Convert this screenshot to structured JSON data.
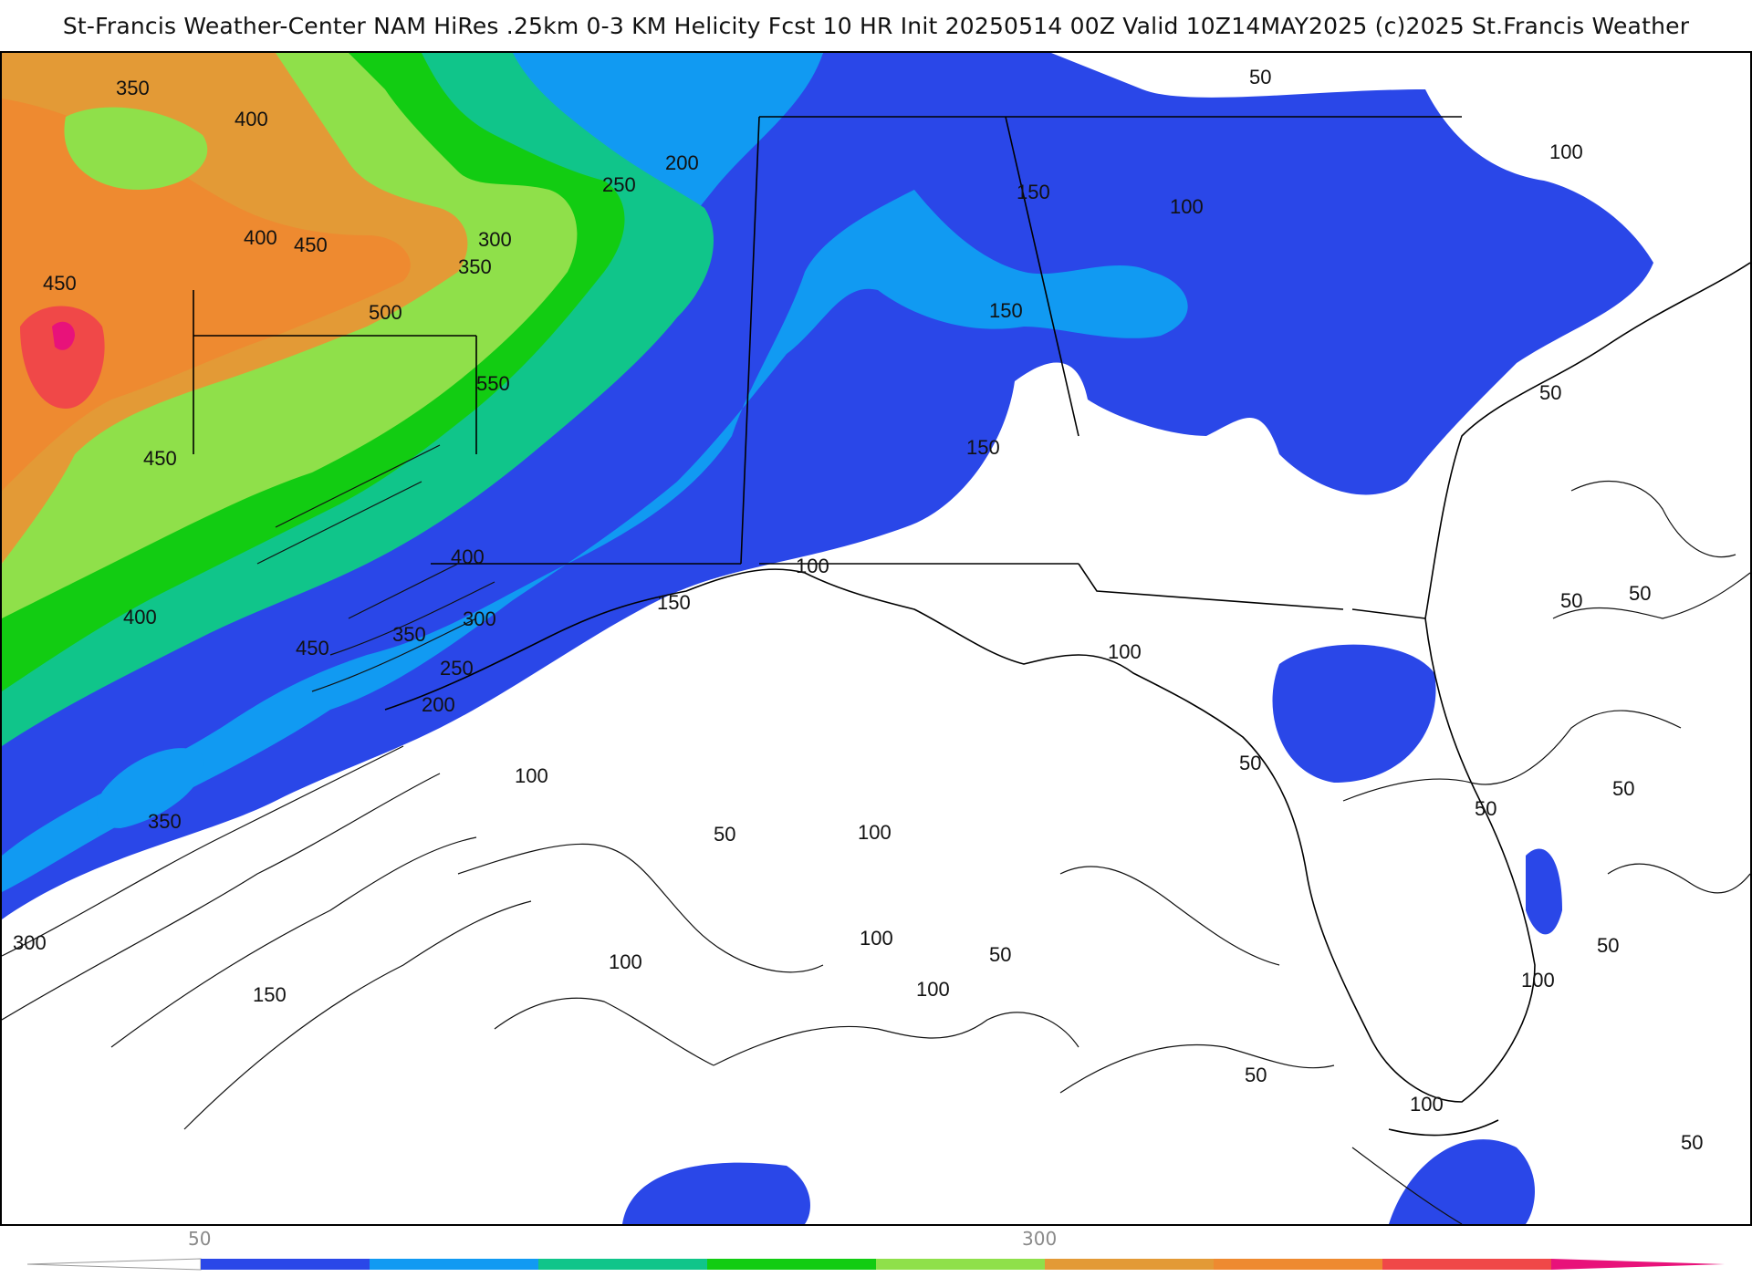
{
  "header": {
    "title": "St-Francis Weather-Center NAM HiRes .25km 0-3 KM Helicity Fcst 10 HR Init 20250514 00Z  Valid 10Z14MAY2025    (c)2025 St.Francis Weather"
  },
  "legend": {
    "tick_labels": [
      "50",
      "300"
    ],
    "colors": [
      "#2a47e8",
      "#119af2",
      "#10c58a",
      "#12cc12",
      "#8fe04a",
      "#e39a36",
      "#ee8a30",
      "#f04848",
      "#e8127a"
    ]
  },
  "contour_labels": [
    "350",
    "400",
    "400",
    "450",
    "450",
    "500",
    "450",
    "300",
    "350",
    "250",
    "200",
    "550",
    "150",
    "150",
    "100",
    "50",
    "100",
    "150",
    "100",
    "50",
    "100",
    "400",
    "350",
    "300",
    "250",
    "200",
    "150",
    "100",
    "400",
    "450",
    "350",
    "300",
    "100",
    "50",
    "100",
    "100",
    "150",
    "50",
    "100",
    "50",
    "50",
    "50",
    "50",
    "50",
    "50",
    "50",
    "100",
    "100",
    "50"
  ],
  "colors": {
    "blue": "#2a47e8",
    "light_blue": "#119af2",
    "teal": "#10c58a",
    "green": "#12cc12",
    "light_green": "#8fe04a",
    "orange": "#e39a36",
    "red": "#f04848",
    "magenta": "#e8127a"
  }
}
